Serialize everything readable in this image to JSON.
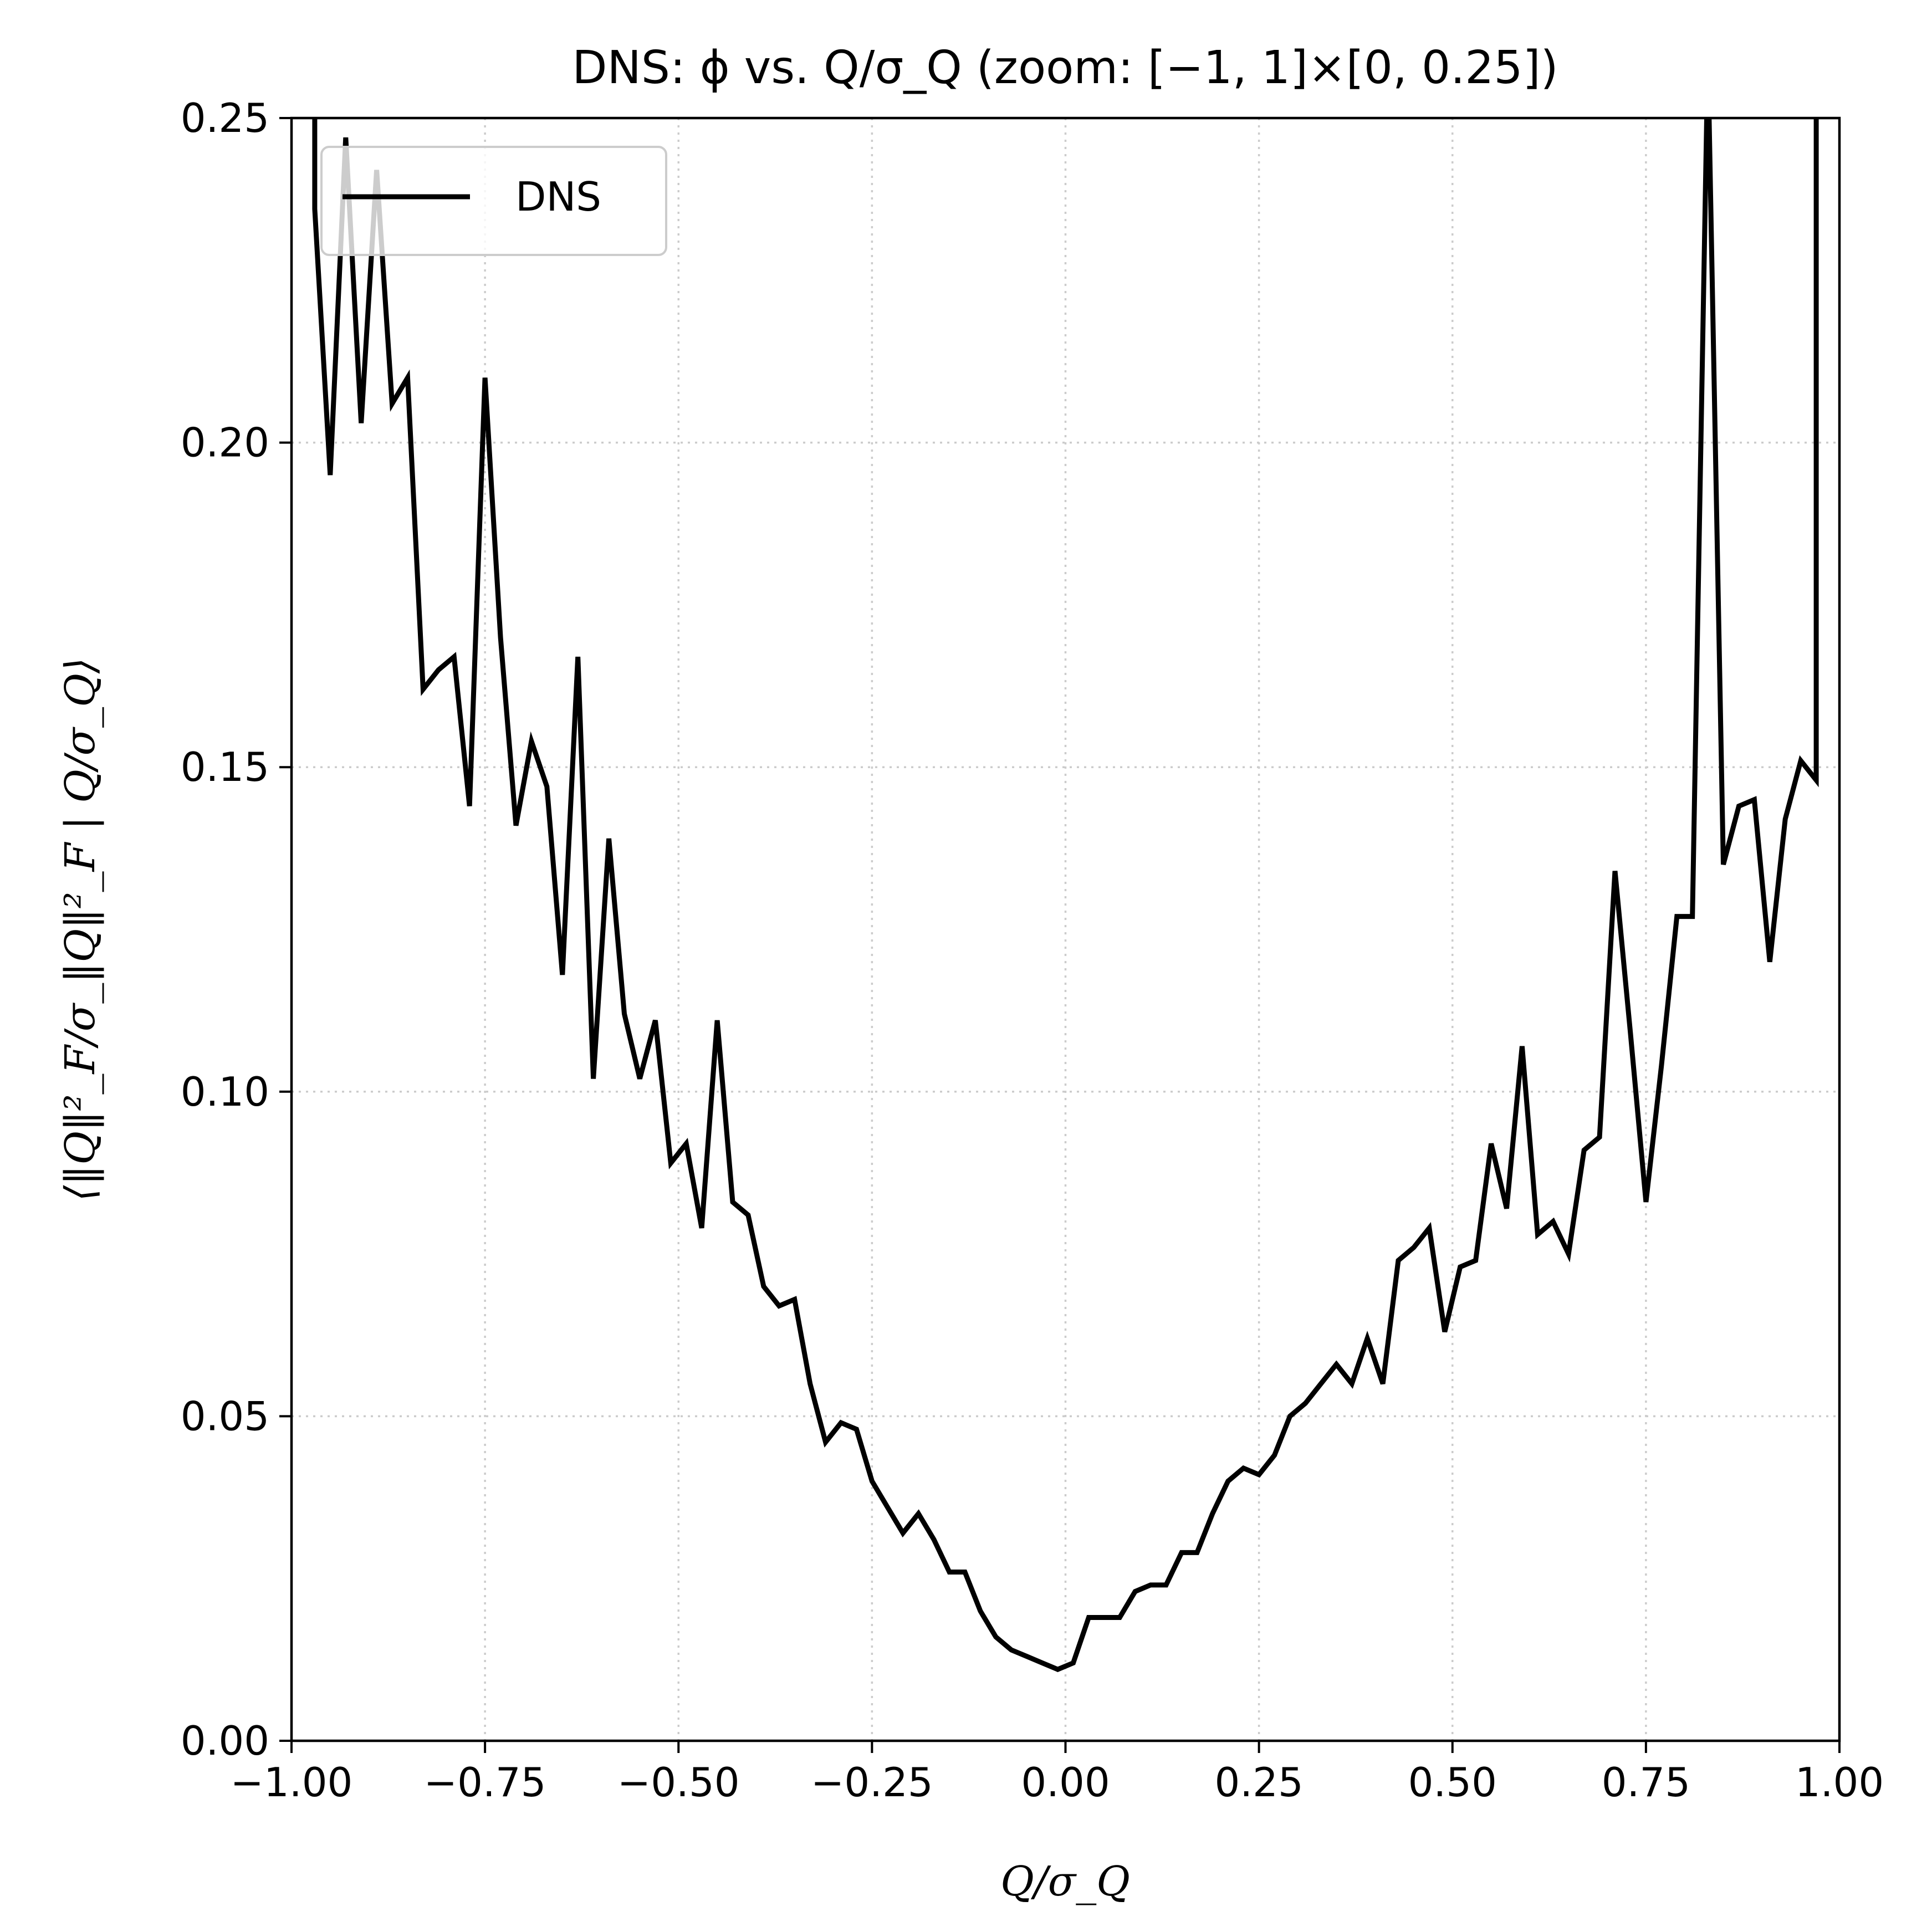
{
  "chart_data": {
    "type": "line",
    "title": "DNS: ϕ vs. Q/σ_Q (zoom: [−1, 1]×[0, 0.25])",
    "xlabel": "Q/σ_Q",
    "ylabel": "⟨‖Q‖²_F/σ_‖Q‖²_F | Q/σ_Q⟩",
    "xlim": [
      -1.0,
      1.0
    ],
    "ylim": [
      0.0,
      0.25
    ],
    "xticks": [
      "−1.00",
      "−0.75",
      "−0.50",
      "−0.25",
      "0.00",
      "0.25",
      "0.50",
      "0.75",
      "1.00"
    ],
    "yticks": [
      "0.00",
      "0.05",
      "0.10",
      "0.15",
      "0.20",
      "0.25"
    ],
    "grid": true,
    "legend": {
      "position": "top-left",
      "entries": [
        "DNS"
      ]
    },
    "series": [
      {
        "name": "DNS",
        "color": "#000000",
        "x": [
          -0.97,
          -0.95,
          -0.93,
          -0.91,
          -0.89,
          -0.87,
          -0.85,
          -0.83,
          -0.81,
          -0.79,
          -0.77,
          -0.75,
          -0.73,
          -0.71,
          -0.69,
          -0.67,
          -0.65,
          -0.63,
          -0.61,
          -0.59,
          -0.57,
          -0.55,
          -0.53,
          -0.51,
          -0.49,
          -0.47,
          -0.45,
          -0.43,
          -0.41,
          -0.39,
          -0.37,
          -0.35,
          -0.33,
          -0.31,
          -0.29,
          -0.27,
          -0.25,
          -0.23,
          -0.21,
          -0.19,
          -0.17,
          -0.15,
          -0.13,
          -0.11,
          -0.09,
          -0.07,
          -0.05,
          -0.03,
          -0.01,
          0.01,
          0.03,
          0.05,
          0.07,
          0.09,
          0.11,
          0.13,
          0.15,
          0.17,
          0.19,
          0.21,
          0.23,
          0.25,
          0.27,
          0.29,
          0.31,
          0.33,
          0.35,
          0.37,
          0.39,
          0.41,
          0.43,
          0.45,
          0.47,
          0.49,
          0.51,
          0.53,
          0.55,
          0.57,
          0.59,
          0.61,
          0.63,
          0.65,
          0.67,
          0.69,
          0.71,
          0.73,
          0.75,
          0.77,
          0.79,
          0.81,
          0.83,
          0.85,
          0.87,
          0.89,
          0.91,
          0.93,
          0.95,
          0.97
        ],
        "y": [
          0.236,
          0.195,
          0.247,
          0.203,
          0.242,
          0.206,
          0.21,
          0.162,
          0.165,
          0.167,
          0.144,
          0.21,
          0.17,
          0.141,
          0.154,
          0.147,
          0.118,
          0.167,
          0.102,
          0.139,
          0.112,
          0.102,
          0.111,
          0.089,
          0.092,
          0.079,
          0.111,
          0.083,
          0.081,
          0.07,
          0.067,
          0.068,
          0.055,
          0.046,
          0.049,
          0.048,
          0.04,
          0.036,
          0.032,
          0.035,
          0.031,
          0.026,
          0.026,
          0.02,
          0.016,
          0.014,
          0.013,
          0.012,
          0.011,
          0.012,
          0.019,
          0.019,
          0.019,
          0.023,
          0.024,
          0.024,
          0.029,
          0.029,
          0.035,
          0.04,
          0.042,
          0.041,
          0.044,
          0.05,
          0.052,
          0.055,
          0.058,
          0.055,
          0.062,
          0.055,
          0.074,
          0.076,
          0.079,
          0.063,
          0.073,
          0.074,
          0.092,
          0.082,
          0.107,
          0.078,
          0.08,
          0.075,
          0.091,
          0.093,
          0.134,
          0.109,
          0.083,
          0.104,
          0.127,
          0.127,
          0.26,
          0.135,
          0.144,
          0.145,
          0.12,
          0.142,
          0.151,
          0.148
        ]
      }
    ]
  }
}
